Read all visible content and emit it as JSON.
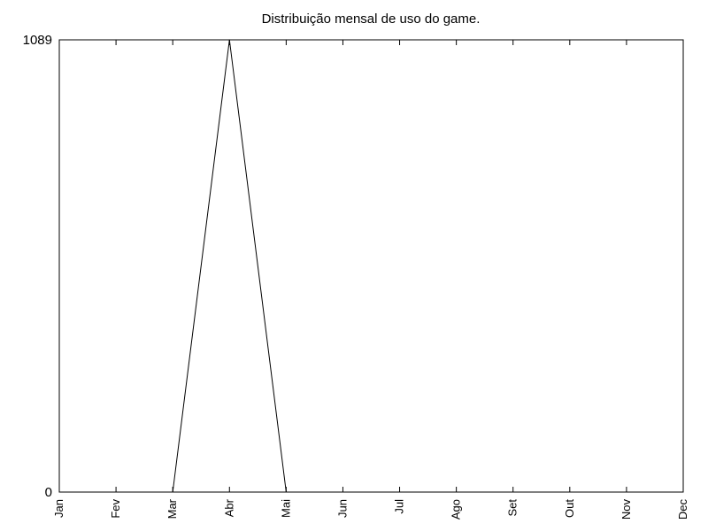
{
  "chart_data": {
    "type": "line",
    "title": "Distribuição mensal de uso do game.",
    "xlabel": "",
    "ylabel": "",
    "categories": [
      "Jan",
      "Fev",
      "Mar",
      "Abr",
      "Mai",
      "Jun",
      "Jul",
      "Ago",
      "Set",
      "Out",
      "Nov",
      "Dec"
    ],
    "series": [
      {
        "values": [
          0,
          0,
          0,
          1089,
          0,
          0,
          0,
          0,
          0,
          0,
          0,
          0
        ],
        "color": "#000000"
      }
    ],
    "ylim": [
      0,
      1089
    ],
    "yticks": [
      "0",
      "1089"
    ],
    "grid": false,
    "legend": "none"
  }
}
